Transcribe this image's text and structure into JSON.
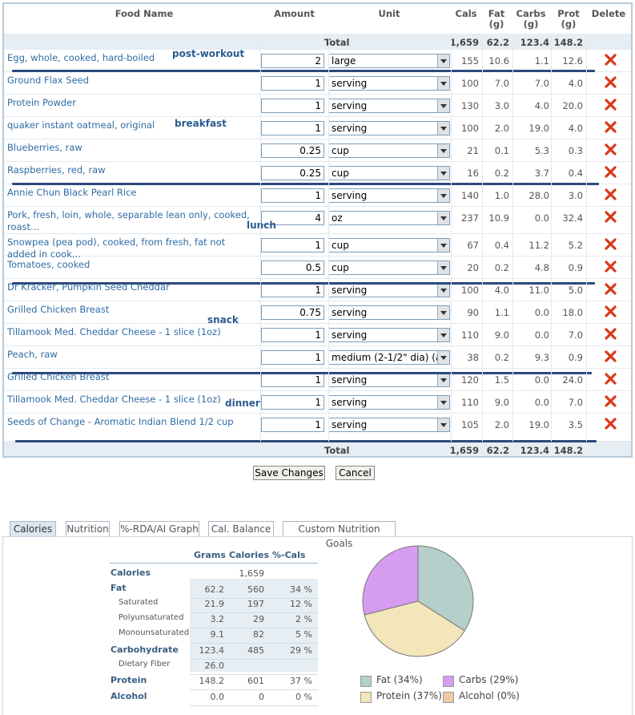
{
  "header": {
    "food_name": "Food Name",
    "amount": "Amount",
    "unit": "Unit",
    "cals": "Cals",
    "fat": "Fat",
    "fat_unit": "(g)",
    "carbs": "Carbs",
    "carbs_unit": "(g)",
    "prot": "Prot",
    "prot_unit": "(g)",
    "delete": "Delete"
  },
  "totals": {
    "label": "Total",
    "cals": "1,659",
    "fat": "62.2",
    "carbs": "123.4",
    "prot": "148.2"
  },
  "rows": [
    {
      "name": "Egg, whole, cooked, hard-boiled",
      "amount": "2",
      "unit": "large",
      "cals": "155",
      "fat": "10.6",
      "carbs": "1.1",
      "prot": "12.6"
    },
    {
      "name": "Ground Flax Seed",
      "amount": "1",
      "unit": "serving",
      "cals": "100",
      "fat": "7.0",
      "carbs": "7.0",
      "prot": "4.0"
    },
    {
      "name": "Protein Powder",
      "amount": "1",
      "unit": "serving",
      "cals": "130",
      "fat": "3.0",
      "carbs": "4.0",
      "prot": "20.0"
    },
    {
      "name": "quaker instant oatmeal, original",
      "amount": "1",
      "unit": "serving",
      "cals": "100",
      "fat": "2.0",
      "carbs": "19.0",
      "prot": "4.0"
    },
    {
      "name": "Blueberries, raw",
      "amount": "0.25",
      "unit": "cup",
      "cals": "21",
      "fat": "0.1",
      "carbs": "5.3",
      "prot": "0.3"
    },
    {
      "name": "Raspberries, red, raw",
      "amount": "0.25",
      "unit": "cup",
      "cals": "16",
      "fat": "0.2",
      "carbs": "3.7",
      "prot": "0.4"
    },
    {
      "name": "Annie Chun Black Pearl Rice",
      "amount": "1",
      "unit": "serving",
      "cals": "140",
      "fat": "1.0",
      "carbs": "28.0",
      "prot": "3.0"
    },
    {
      "name": "Pork, fresh, loin, whole, separable lean only, cooked, roast...",
      "amount": "4",
      "unit": "oz",
      "cals": "237",
      "fat": "10.9",
      "carbs": "0.0",
      "prot": "32.4"
    },
    {
      "name": "Snowpea (pea pod), cooked, from fresh, fat not added in cook...",
      "amount": "1",
      "unit": "cup",
      "cals": "67",
      "fat": "0.4",
      "carbs": "11.2",
      "prot": "5.2"
    },
    {
      "name": "Tomatoes, cooked",
      "amount": "0.5",
      "unit": "cup",
      "cals": "20",
      "fat": "0.2",
      "carbs": "4.8",
      "prot": "0.9"
    },
    {
      "name": "Dr Kracker, Pumpkin Seed Cheddar",
      "amount": "1",
      "unit": "serving",
      "cals": "100",
      "fat": "4.0",
      "carbs": "11.0",
      "prot": "5.0"
    },
    {
      "name": "Grilled Chicken Breast",
      "amount": "0.75",
      "unit": "serving",
      "cals": "90",
      "fat": "1.1",
      "carbs": "0.0",
      "prot": "18.0"
    },
    {
      "name": "Tillamook Med. Cheddar Cheese - 1 slice (1oz)",
      "amount": "1",
      "unit": "serving",
      "cals": "110",
      "fat": "9.0",
      "carbs": "0.0",
      "prot": "7.0"
    },
    {
      "name": "Peach, raw",
      "amount": "1",
      "unit": "medium (2-1/2\" dia) (a",
      "cals": "38",
      "fat": "0.2",
      "carbs": "9.3",
      "prot": "0.9"
    },
    {
      "name": "Grilled Chicken Breast",
      "amount": "1",
      "unit": "serving",
      "cals": "120",
      "fat": "1.5",
      "carbs": "0.0",
      "prot": "24.0"
    },
    {
      "name": "Tillamook Med. Cheddar Cheese - 1 slice (1oz)",
      "amount": "1",
      "unit": "serving",
      "cals": "110",
      "fat": "9.0",
      "carbs": "0.0",
      "prot": "7.0"
    },
    {
      "name": "Seeds of Change - Aromatic Indian Blend 1/2 cup",
      "amount": "1",
      "unit": "serving",
      "cals": "105",
      "fat": "2.0",
      "carbs": "19.0",
      "prot": "3.5"
    }
  ],
  "annotations": {
    "post_workout": "post-workout",
    "breakfast": "breakfast",
    "lunch": "lunch",
    "snack": "snack",
    "dinner": "dinner"
  },
  "buttons": {
    "save": "Save Changes",
    "cancel": "Cancel"
  },
  "tabs": [
    "Calories",
    "Nutrition",
    "%-RDA/AI Graph",
    "Cal. Balance",
    "Custom Nutrition Goals"
  ],
  "nutrition_table": {
    "headers": {
      "grams": "Grams",
      "calories": "Calories",
      "pct_cals": "%-Cals"
    },
    "rows": [
      {
        "label": "Calories",
        "grams": "",
        "calories": "1,659",
        "pct": ""
      },
      {
        "label": "Fat",
        "grams": "62.2",
        "calories": "560",
        "pct": "34 %"
      },
      {
        "label": "Saturated",
        "grams": "21.9",
        "calories": "197",
        "pct": "12 %"
      },
      {
        "label": "Polyunsaturated",
        "grams": "3.2",
        "calories": "29",
        "pct": "2 %"
      },
      {
        "label": "Monounsaturated",
        "grams": "9.1",
        "calories": "82",
        "pct": "5 %"
      },
      {
        "label": "Carbohydrate",
        "grams": "123.4",
        "calories": "485",
        "pct": "29 %"
      },
      {
        "label": "Dietary Fiber",
        "grams": "26.0",
        "calories": "",
        "pct": ""
      },
      {
        "label": "Protein",
        "grams": "148.2",
        "calories": "601",
        "pct": "37 %"
      },
      {
        "label": "Alcohol",
        "grams": "0.0",
        "calories": "0",
        "pct": "0 %"
      }
    ]
  },
  "chart_data": {
    "type": "pie",
    "categories": [
      "Fat",
      "Carbs",
      "Protein",
      "Alcohol"
    ],
    "values": [
      34,
      29,
      37,
      0
    ],
    "colors": [
      "#b5cfcb",
      "#d69cf0",
      "#f3e6bb",
      "#f0c9a2"
    ],
    "legend": [
      "Fat (34%)",
      "Carbs (29%)",
      "Protein (37%)",
      "Alcohol (0%)"
    ]
  },
  "icons": {
    "delete": "delete-x-icon",
    "dropdown": "dropdown-arrow-icon"
  }
}
